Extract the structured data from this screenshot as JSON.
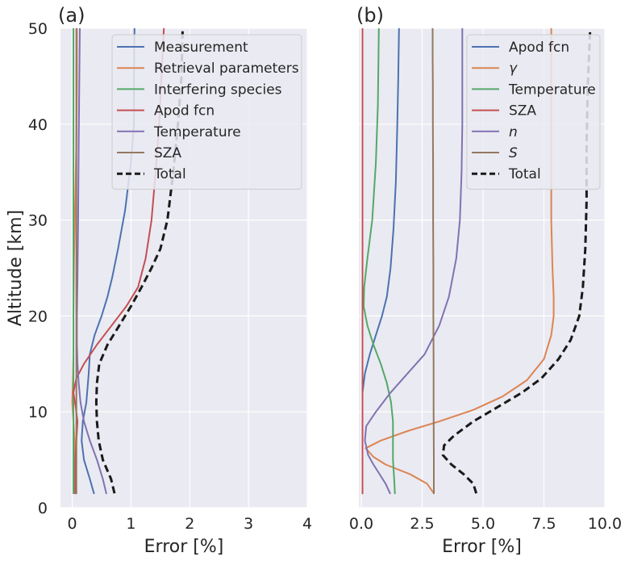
{
  "chart_data": [
    {
      "type": "line",
      "title": "(a)",
      "xlabel": "Error [%]",
      "ylabel": "Altitude [km]",
      "xlim": [
        -0.2,
        4
      ],
      "ylim": [
        0,
        50
      ],
      "xticks": [
        0,
        1,
        2,
        3,
        4
      ],
      "xtick_labels": [
        "0",
        "1",
        "2",
        "3",
        "4"
      ],
      "yticks": [
        0,
        10,
        20,
        30,
        40,
        50
      ],
      "ytick_labels": [
        "0",
        "10",
        "20",
        "30",
        "40",
        "50"
      ],
      "grid": true,
      "legend_position": "top-right",
      "series": [
        {
          "name": "Measurement",
          "color": "#4c72b0",
          "dash": "solid",
          "x": [
            0.37,
            0.3,
            0.2,
            0.16,
            0.18,
            0.24,
            0.28,
            0.3,
            0.38,
            0.5,
            0.6,
            0.68,
            0.78,
            0.9,
            1.0,
            1.05,
            1.05,
            1.06
          ],
          "y": [
            1.5,
            3,
            5,
            7,
            9,
            11,
            14,
            16,
            18,
            20,
            22,
            24,
            27,
            31,
            36,
            40,
            45,
            50
          ]
        },
        {
          "name": "Retrieval parameters",
          "color": "#dd8452",
          "dash": "solid",
          "x": [
            0.05,
            0.05,
            0.05,
            0.04,
            0.02,
            0.0,
            0.01,
            0.02,
            0.02,
            0.03,
            0.05,
            0.07,
            0.08,
            0.08
          ],
          "y": [
            1.5,
            3,
            5,
            7,
            9,
            11,
            13,
            16,
            20,
            26,
            32,
            38,
            44,
            50
          ]
        },
        {
          "name": "Interfering species",
          "color": "#55a868",
          "dash": "solid",
          "x": [
            0.02,
            0.02,
            0.02,
            0.02,
            0.02,
            0.02,
            0.02,
            0.02,
            0.02,
            0.02,
            0.02,
            0.02
          ],
          "y": [
            1.5,
            5,
            10,
            15,
            20,
            25,
            30,
            35,
            40,
            44,
            47,
            50
          ]
        },
        {
          "name": "Apod fcn",
          "color": "#c44e52",
          "dash": "solid",
          "x": [
            0.05,
            0.05,
            0.05,
            0.07,
            0.09,
            0.06,
            0.02,
            0.07,
            0.2,
            0.42,
            0.67,
            0.92,
            1.12,
            1.25,
            1.35,
            1.42,
            1.48,
            1.52,
            1.56
          ],
          "y": [
            1.5,
            3,
            5,
            7,
            9,
            10.5,
            12,
            13.5,
            15,
            17,
            19,
            21,
            23,
            26,
            30,
            35,
            40,
            45,
            50
          ]
        },
        {
          "name": "Temperature",
          "color": "#8172b2",
          "dash": "solid",
          "x": [
            0.58,
            0.52,
            0.42,
            0.3,
            0.2,
            0.14,
            0.11,
            0.09,
            0.08,
            0.08,
            0.09,
            0.1,
            0.11,
            0.12,
            0.13
          ],
          "y": [
            1.5,
            3,
            5,
            7,
            9,
            11,
            13,
            15,
            17,
            20,
            24,
            30,
            38,
            44,
            50
          ]
        },
        {
          "name": "SZA",
          "color": "#937860",
          "dash": "solid",
          "x": [
            0.07,
            0.07,
            0.07,
            0.07,
            0.07,
            0.07,
            0.07,
            0.07,
            0.07,
            0.07,
            0.07,
            0.07
          ],
          "y": [
            1.5,
            5,
            10,
            15,
            20,
            25,
            30,
            35,
            40,
            44,
            47,
            50
          ]
        },
        {
          "name": "Total",
          "color": "#1a1a1a",
          "dash": "dashed",
          "x": [
            0.72,
            0.66,
            0.52,
            0.45,
            0.42,
            0.41,
            0.42,
            0.46,
            0.6,
            0.8,
            1.0,
            1.18,
            1.35,
            1.5,
            1.62,
            1.72,
            1.8,
            1.86,
            1.88
          ],
          "y": [
            1.5,
            3,
            5,
            7,
            9,
            11,
            13,
            15,
            17,
            19,
            21,
            23,
            25,
            27,
            30,
            35,
            40,
            45,
            50
          ]
        }
      ]
    },
    {
      "type": "line",
      "title": "(b)",
      "xlabel": "Error [%]",
      "ylabel": "",
      "xlim": [
        -0.1,
        10
      ],
      "ylim": [
        0,
        50
      ],
      "xticks": [
        0,
        2.5,
        5,
        7.5,
        10
      ],
      "xtick_labels": [
        "0.0",
        "2.5",
        "5.0",
        "7.5",
        "10.0"
      ],
      "yticks": [
        0,
        10,
        20,
        30,
        40,
        50
      ],
      "grid": true,
      "legend_position": "top-right",
      "series": [
        {
          "name": "Apod fcn",
          "color": "#4c72b0",
          "dash": "solid",
          "x": [
            0.05,
            0.05,
            0.05,
            0.05,
            0.05,
            0.05,
            0.05,
            0.15,
            0.35,
            0.6,
            0.85,
            1.05,
            1.2,
            1.32,
            1.42,
            1.48,
            1.52,
            1.55
          ],
          "y": [
            1.5,
            3,
            5,
            7,
            9,
            11,
            12,
            14,
            16,
            18,
            20,
            22,
            25,
            29,
            34,
            40,
            45,
            50
          ]
        },
        {
          "name": "γ",
          "color": "#dd8452",
          "dash": "solid",
          "x": [
            2.98,
            2.7,
            2.0,
            1.0,
            0.5,
            0.18,
            0.8,
            1.9,
            3.2,
            4.6,
            5.8,
            6.8,
            7.5,
            7.8,
            7.9,
            7.9,
            7.85,
            7.8,
            7.8,
            7.8,
            7.8
          ],
          "y": [
            1.5,
            2.5,
            3.5,
            4.5,
            5.3,
            6.2,
            7,
            8,
            9,
            10.2,
            11.6,
            13.3,
            15.5,
            18,
            20,
            22,
            25,
            30,
            38,
            45,
            50
          ]
        },
        {
          "name": "Temperature",
          "color": "#55a868",
          "dash": "solid",
          "x": [
            1.38,
            1.35,
            1.3,
            1.3,
            1.3,
            1.22,
            1.05,
            0.8,
            0.5,
            0.25,
            0.1,
            0.12,
            0.25,
            0.45,
            0.6,
            0.68,
            0.72
          ],
          "y": [
            1.5,
            3,
            5,
            7,
            9,
            11,
            13,
            15,
            17,
            19,
            21,
            23,
            26,
            30,
            36,
            42,
            50
          ]
        },
        {
          "name": "SZA",
          "color": "#c44e52",
          "dash": "solid",
          "x": [
            0.05,
            0.05,
            0.05,
            0.05,
            0.05,
            0.05,
            0.05,
            0.05,
            0.05,
            0.05,
            0.05,
            0.05
          ],
          "y": [
            1.5,
            5,
            10,
            15,
            20,
            25,
            30,
            35,
            40,
            44,
            47,
            50
          ]
        },
        {
          "name": "n",
          "color": "#8172b2",
          "dash": "solid",
          "x": [
            1.18,
            1.0,
            0.75,
            0.5,
            0.28,
            0.15,
            0.2,
            0.6,
            1.2,
            1.9,
            2.6,
            3.2,
            3.6,
            3.9,
            4.05,
            4.12,
            4.15,
            4.15,
            4.15
          ],
          "y": [
            1.5,
            2.5,
            3.5,
            4.5,
            5.5,
            7,
            8.5,
            10,
            12,
            14,
            16,
            19,
            22,
            26,
            30,
            35,
            40,
            45,
            50
          ]
        },
        {
          "name": "S",
          "color": "#937860",
          "dash": "solid",
          "x": [
            2.98,
            2.98,
            2.97,
            2.97,
            2.96,
            2.96,
            2.95,
            2.95,
            2.94,
            2.94,
            2.93,
            2.93
          ],
          "y": [
            1.5,
            5,
            10,
            15,
            20,
            25,
            30,
            35,
            40,
            44,
            47,
            50
          ]
        },
        {
          "name": "Total",
          "color": "#1a1a1a",
          "dash": "dashed",
          "x": [
            4.72,
            4.6,
            4.2,
            3.7,
            3.35,
            3.4,
            3.8,
            4.6,
            5.6,
            6.6,
            7.4,
            8.1,
            8.6,
            8.95,
            9.1,
            9.2,
            9.25,
            9.25,
            9.3,
            9.35,
            9.4
          ],
          "y": [
            1.5,
            2.5,
            3.5,
            4.5,
            5.5,
            6.5,
            7.5,
            9,
            10.5,
            12,
            13.5,
            15.5,
            17.5,
            20,
            23,
            27,
            32,
            38,
            44,
            47,
            50
          ]
        }
      ]
    }
  ]
}
